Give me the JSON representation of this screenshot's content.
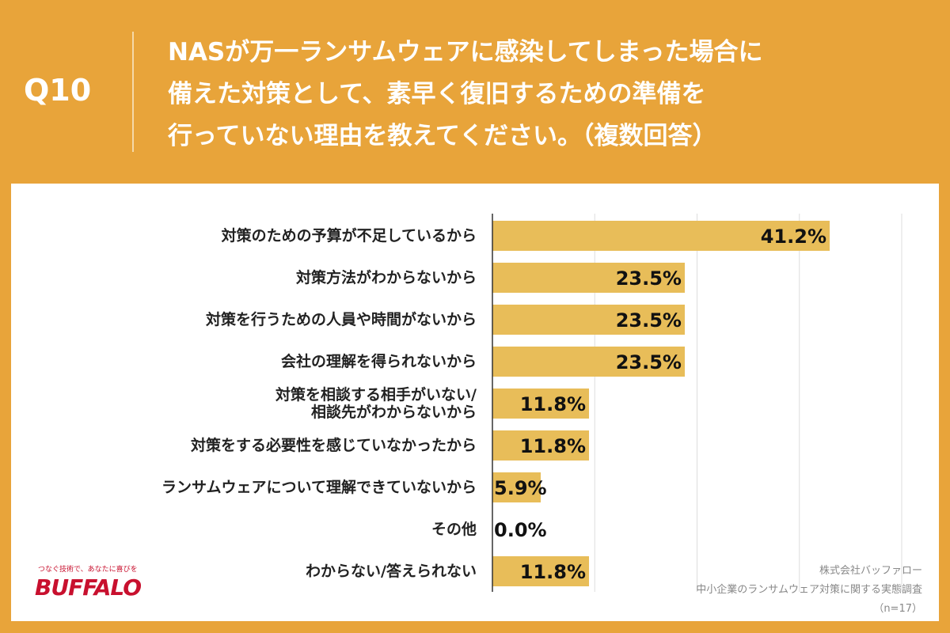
{
  "header": {
    "label": "Q10",
    "title": "NASが万一ランサムウェアに感染してしまった場合に\n備えた対策として、素早く復旧するための準備を\n行っていない理由を教えてください。（複数回答）"
  },
  "chart_data": {
    "type": "bar",
    "orientation": "horizontal",
    "categories": [
      "対策のための予算が不足しているから",
      "対策方法がわからないから",
      "対策を行うための人員や時間がないから",
      "会社の理解を得られないから",
      "対策を相談する相手がいない/\n相談先がわからないから",
      "対策をする必要性を感じていなかったから",
      "ランサムウェアについて理解できていないから",
      "その他",
      "わからない/答えられない"
    ],
    "values": [
      41.2,
      23.5,
      23.5,
      23.5,
      11.8,
      11.8,
      5.9,
      0.0,
      11.8
    ],
    "value_labels": [
      "41.2%",
      "23.5%",
      "23.5%",
      "23.5%",
      "11.8%",
      "11.8%",
      "5.9%",
      "0.0%",
      "11.8%"
    ],
    "color": "#e8bd59",
    "xlim": [
      0,
      50
    ],
    "xticks": [
      0,
      12.5,
      25,
      37.5,
      50
    ],
    "grid": true
  },
  "footer": {
    "brand_tagline": "つなぐ技術で、あなたに喜びを",
    "brand": "BUFFALO",
    "source_lines": [
      "株式会社バッファロー",
      "中小企業のランサムウェア対策に関する実態調査",
      "（n=17）"
    ]
  }
}
